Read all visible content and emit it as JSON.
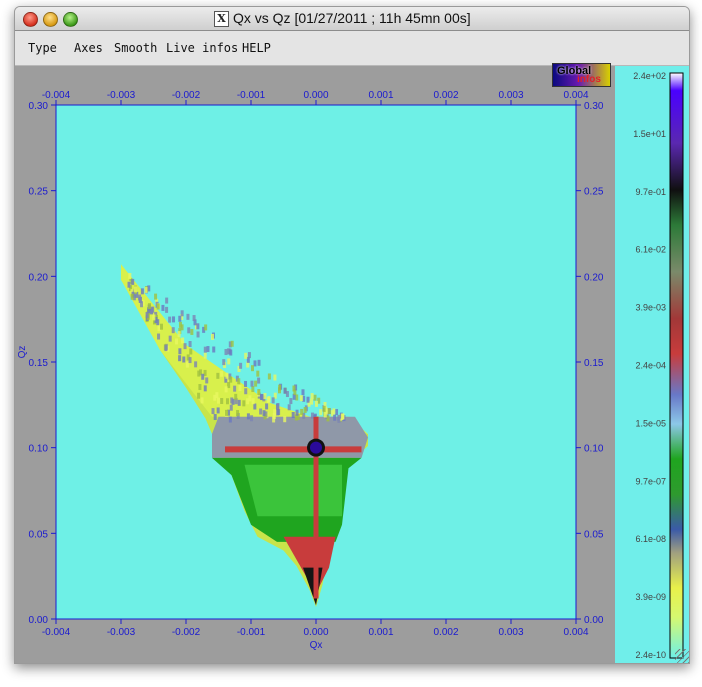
{
  "window": {
    "title": "Qx vs Qz [01/27/2011 ; 11h 45mn 00s]",
    "close_icon": "red-close-button",
    "minimize_icon": "yellow-minimize-button",
    "zoom_icon": "green-zoom-button",
    "app_icon": "x11-icon"
  },
  "menu": [
    "Type",
    "Axes",
    "Smooth",
    "Live infos",
    "HELP"
  ],
  "logo": {
    "line1": "Global",
    "line2": "infos"
  },
  "colors": {
    "plot_background": "#6ef0e6",
    "frame": "#9d9d9d",
    "tick_text": "#1a1ad0"
  },
  "chart_data": {
    "type": "heatmap",
    "title": "Qx vs Qz",
    "xlabel": "Qx",
    "ylabel": "Qz",
    "xlim": [
      -0.004,
      0.004
    ],
    "ylim": [
      0.0,
      0.3
    ],
    "x_ticks": [
      "-0.004",
      "-0.003",
      "-0.002",
      "-0.001",
      "0.000",
      "0.001",
      "0.002",
      "0.003",
      "0.004"
    ],
    "y_ticks": [
      "0.00",
      "0.05",
      "0.10",
      "0.15",
      "0.20",
      "0.25",
      "0.30"
    ],
    "colorbar": {
      "scale": "log",
      "range": [
        2.4e-10,
        240
      ],
      "tick_labels": [
        "2.4e+02",
        "1.5e+01",
        "9.7e-01",
        "6.1e-02",
        "3.9e-03",
        "2.4e-04",
        "1.5e-05",
        "9.7e-07",
        "6.1e-08",
        "3.9e-09",
        "2.4e-10"
      ]
    },
    "region_outline": [
      [
        -0.003,
        0.207
      ],
      [
        -0.0029,
        0.2
      ],
      [
        -0.0026,
        0.182
      ],
      [
        -0.002,
        0.16
      ],
      [
        -0.0013,
        0.14
      ],
      [
        -0.0007,
        0.126
      ],
      [
        -0.0002,
        0.118
      ],
      [
        0.0003,
        0.113
      ],
      [
        0.0008,
        0.108
      ],
      [
        0.0008,
        0.101
      ],
      [
        0.0005,
        0.091
      ],
      [
        0.0004,
        0.08
      ],
      [
        0.0003,
        0.06
      ],
      [
        0.0002,
        0.04
      ],
      [
        0.0001,
        0.02
      ],
      [
        0.0,
        0.007
      ],
      [
        -0.0001,
        0.017
      ],
      [
        -0.0003,
        0.031
      ],
      [
        -0.0005,
        0.04
      ],
      [
        -0.0009,
        0.048
      ],
      [
        -0.0011,
        0.063
      ],
      [
        -0.0013,
        0.084
      ],
      [
        -0.0015,
        0.098
      ],
      [
        -0.0016,
        0.108
      ],
      [
        -0.0017,
        0.117
      ],
      [
        -0.002,
        0.135
      ],
      [
        -0.0024,
        0.157
      ],
      [
        -0.0027,
        0.18
      ],
      [
        -0.003,
        0.198
      ]
    ],
    "bands": [
      {
        "level": "3.9e-09",
        "color": "#d8f04c",
        "poly": [
          [
            -0.003,
            0.207
          ],
          [
            -0.002,
            0.16
          ],
          [
            -0.0007,
            0.126
          ],
          [
            0.0003,
            0.113
          ],
          [
            0.0008,
            0.108
          ],
          [
            0.0005,
            0.118
          ],
          [
            -0.0016,
            0.118
          ],
          [
            -0.0024,
            0.157
          ],
          [
            -0.003,
            0.198
          ]
        ]
      },
      {
        "level": "6.1e-08",
        "color": "#8f98a8",
        "poly": [
          [
            -0.0015,
            0.118
          ],
          [
            0.0006,
            0.118
          ],
          [
            0.0008,
            0.106
          ],
          [
            0.0007,
            0.094
          ],
          [
            -0.0016,
            0.094
          ],
          [
            -0.0016,
            0.108
          ]
        ]
      },
      {
        "level": "9.7e-07",
        "color": "#1fa51f",
        "poly": [
          [
            -0.0016,
            0.094
          ],
          [
            0.0007,
            0.094
          ],
          [
            0.0005,
            0.088
          ],
          [
            0.0004,
            0.055
          ],
          [
            0.0003,
            0.045
          ],
          [
            -0.0006,
            0.045
          ],
          [
            -0.001,
            0.055
          ],
          [
            -0.0013,
            0.084
          ]
        ]
      },
      {
        "level": "1.5e-05",
        "color": "#3bc43b",
        "poly": [
          [
            -0.0011,
            0.09
          ],
          [
            0.0004,
            0.09
          ],
          [
            0.0004,
            0.06
          ],
          [
            -0.0009,
            0.06
          ]
        ]
      },
      {
        "level": "2.4e-04",
        "color": "#c83c3c",
        "poly": [
          [
            -0.0005,
            0.048
          ],
          [
            0.0003,
            0.048
          ],
          [
            0.0002,
            0.03
          ],
          [
            0.0,
            0.015
          ],
          [
            -0.0002,
            0.028
          ]
        ]
      },
      {
        "level": "6.1e-02",
        "color": "#151515",
        "poly": [
          [
            -0.0002,
            0.03
          ],
          [
            0.0001,
            0.03
          ],
          [
            0.0,
            0.008
          ]
        ]
      }
    ],
    "horizontal_streak": {
      "y": 0.099,
      "x_start": -0.0014,
      "x_end": 0.0007,
      "color": "#c83c3c"
    },
    "vertical_streak": {
      "x": 0.0,
      "y_start": 0.012,
      "y_end": 0.118,
      "color": "#c83c3c"
    },
    "peak": {
      "x": 0.0,
      "y": 0.1,
      "level": "2.4e+02",
      "color": "#2a0a9a"
    }
  }
}
